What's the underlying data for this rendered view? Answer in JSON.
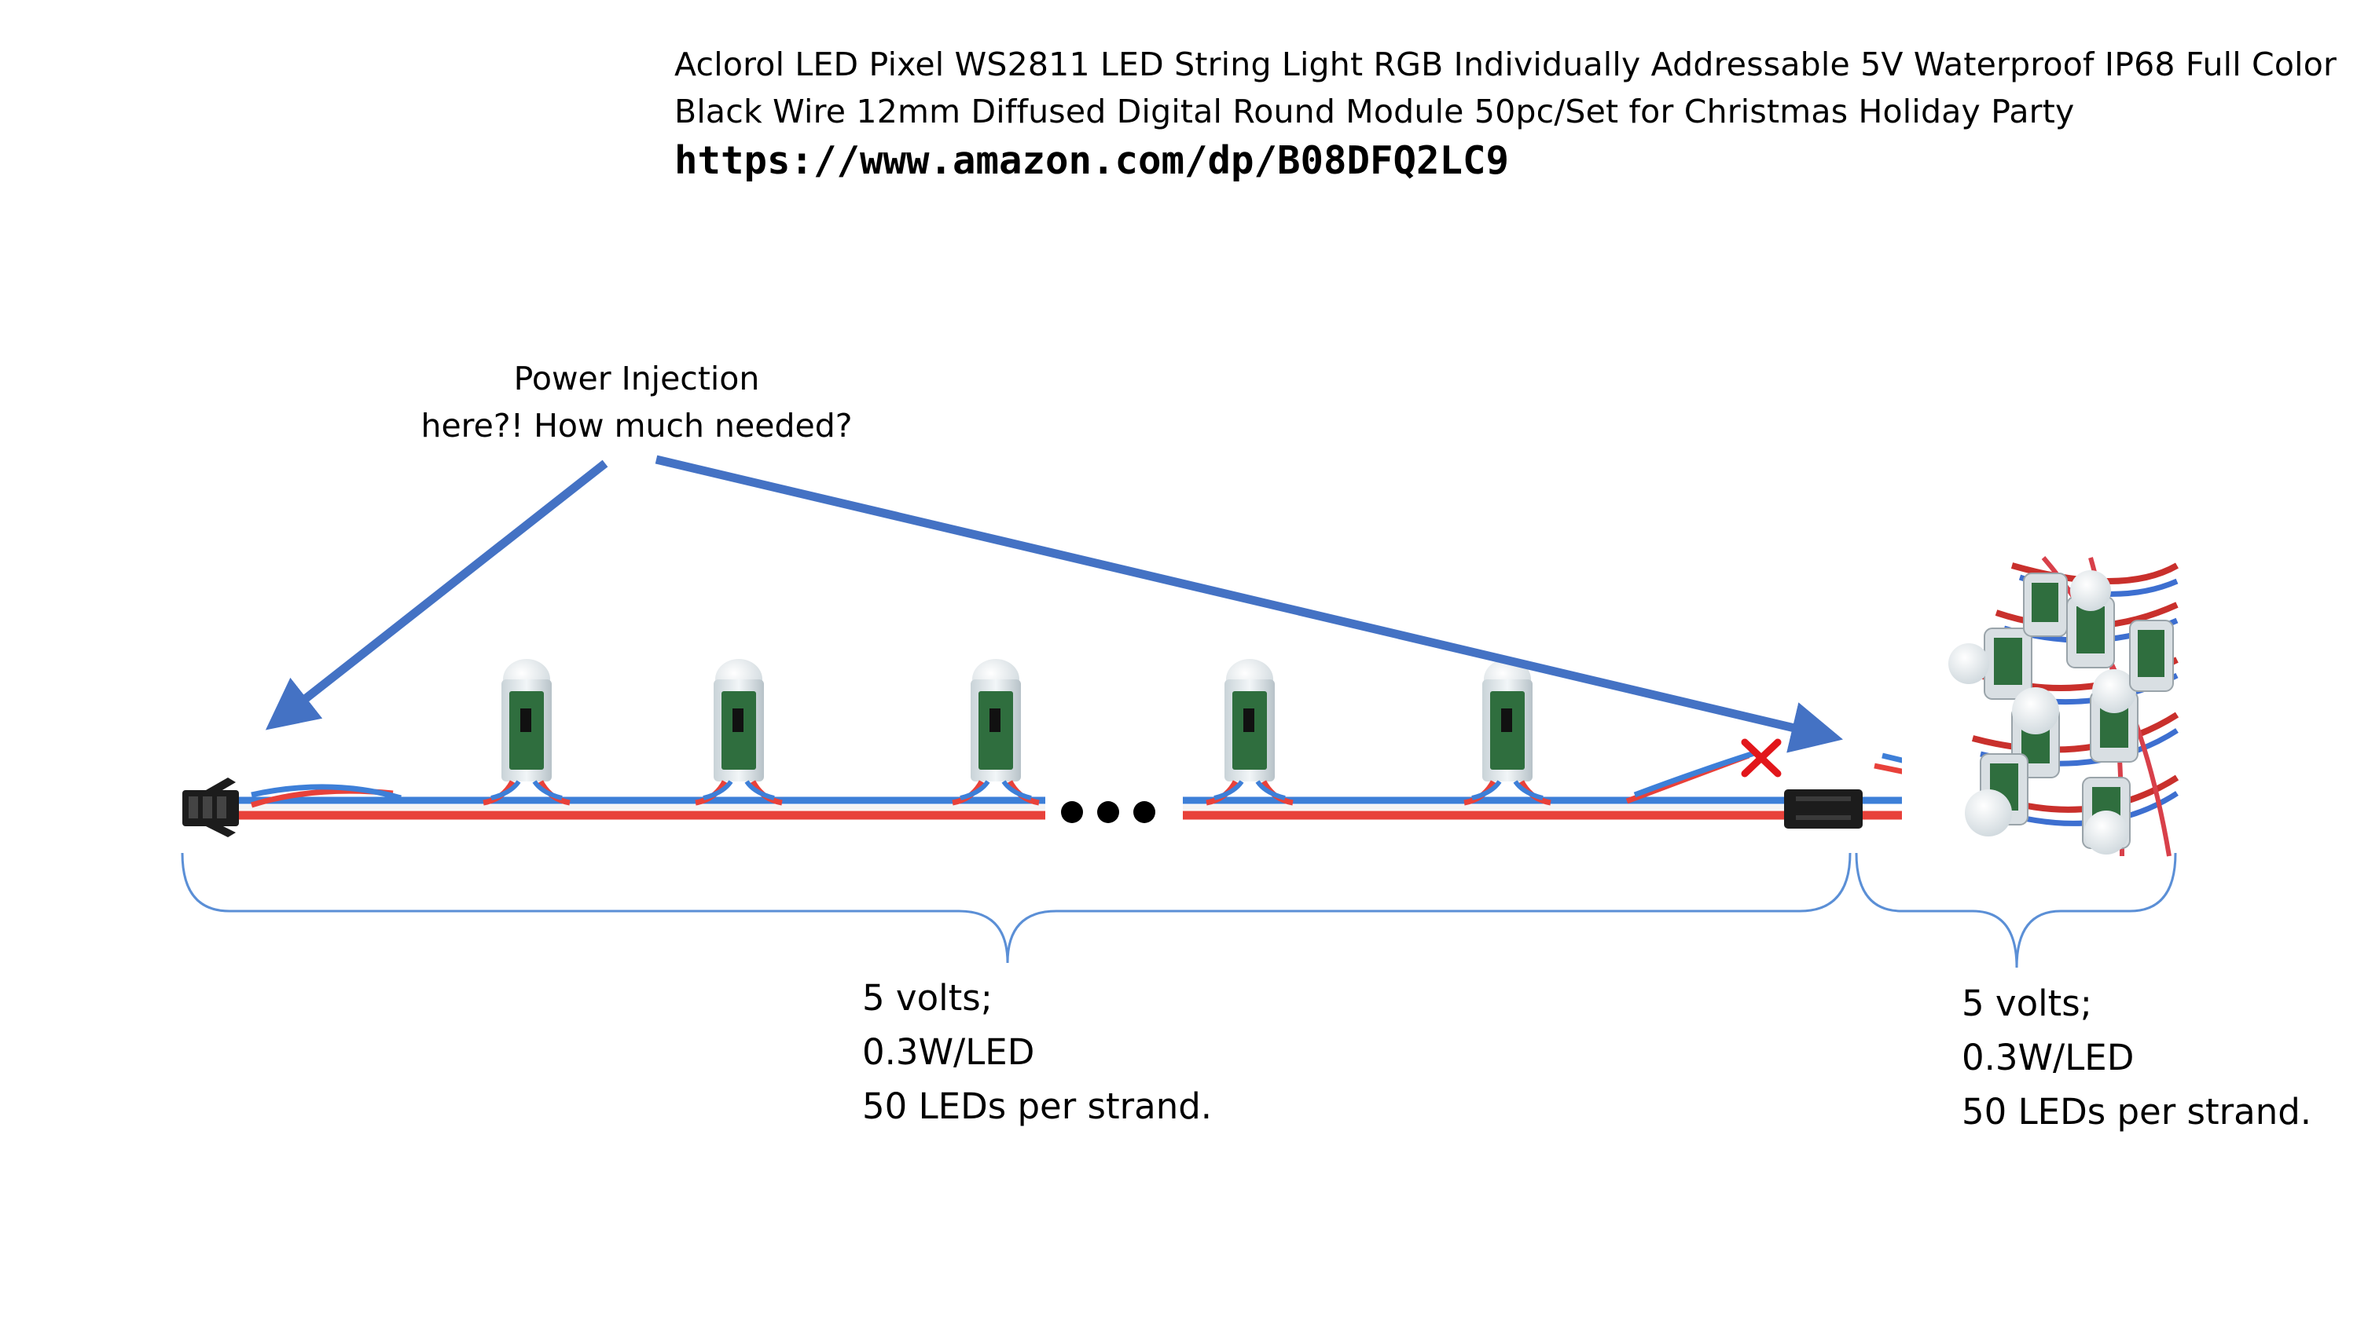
{
  "header": {
    "title_line_1": "Aclorol LED Pixel WS2811 LED String Light RGB Individually Addressable 5V Waterproof IP68 Full Color",
    "title_line_2": "Black Wire 12mm Diffused Digital Round Module 50pc/Set for Christmas Holiday Party",
    "url": "https://www.amazon.com/dp/B08DFQ2LC9"
  },
  "annotation": {
    "line_1": "Power Injection",
    "line_2": "here?!  How much needed?"
  },
  "segments": [
    {
      "voltage": "5 volts;",
      "power": "0.3W/LED",
      "count": "50 LEDs per strand."
    },
    {
      "voltage": "5 volts;",
      "power": "0.3W/LED",
      "count": "50 LEDs per strand."
    }
  ],
  "colors": {
    "arrow": "#4472c4",
    "brace": "#5b8fd6",
    "wire_red": "#e8413a",
    "wire_blue": "#3d7fd8",
    "cross": "#e2161b",
    "connector": "#1c1c1c",
    "pcb": "#2f6e3e"
  },
  "icons": {
    "ellipsis": "ellipsis-dots",
    "cut_mark": "x-cross"
  }
}
